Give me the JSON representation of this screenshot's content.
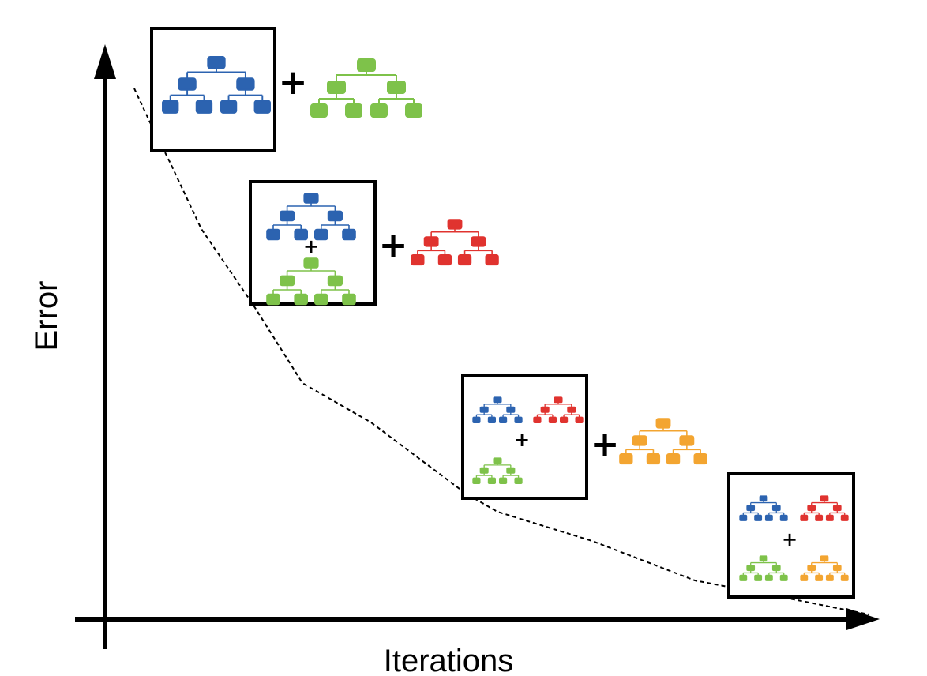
{
  "axes": {
    "y_label": "Error",
    "x_label": "Iterations"
  },
  "colors": {
    "blue": "#2c63b0",
    "green": "#7ec24a",
    "red": "#e0332f",
    "orange": "#f3a531",
    "axis": "#000000"
  },
  "stages": [
    {
      "ensemble": [
        "blue"
      ],
      "added_tree": "green"
    },
    {
      "ensemble": [
        "blue",
        "green"
      ],
      "added_tree": "red"
    },
    {
      "ensemble": [
        "blue",
        "red",
        "green"
      ],
      "added_tree": "orange"
    },
    {
      "ensemble": [
        "blue",
        "red",
        "green",
        "orange"
      ],
      "added_tree": ""
    }
  ],
  "operator_symbol": "+"
}
